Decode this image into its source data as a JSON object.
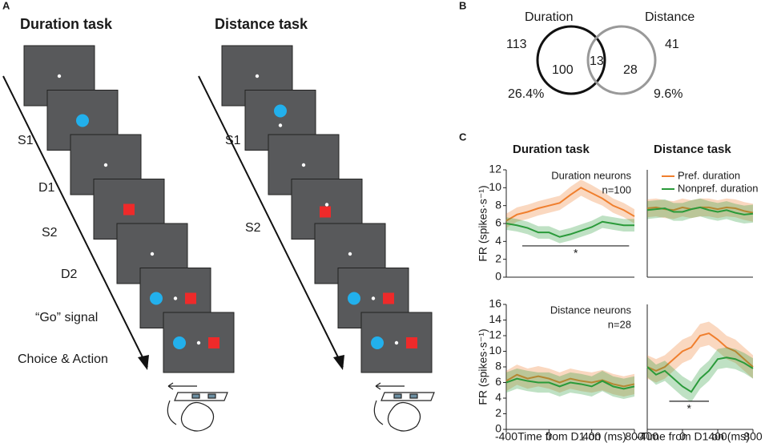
{
  "panel_a": {
    "label": "A",
    "duration_task": {
      "title": "Duration task",
      "steps": [
        "S1",
        "D1",
        "S2",
        "D2",
        "“Go” signal",
        "Choice & Action"
      ]
    },
    "distance_task": {
      "title": "Distance task",
      "steps": [
        "S1",
        "S2"
      ]
    }
  },
  "panel_b": {
    "label": "B",
    "sets": [
      {
        "name": "Duration",
        "total": 113,
        "only": 100,
        "percent": "26.4%"
      },
      {
        "name": "Distance",
        "total": 41,
        "only": 28,
        "percent": "9.6%"
      }
    ],
    "overlap": 13
  },
  "panel_c": {
    "label": "C"
  },
  "chart_data": [
    {
      "type": "line",
      "title": "Duration task",
      "ylabel": "FR (spikes·s⁻¹)",
      "annotations": [
        "Duration neurons",
        "n=100"
      ],
      "x": [
        -400,
        -300,
        -200,
        -100,
        0,
        100,
        200,
        300,
        400,
        500,
        600,
        700,
        800
      ],
      "xlim": [
        -400,
        800
      ],
      "ylim": [
        0,
        12
      ],
      "yticks": [
        0,
        2,
        4,
        6,
        8,
        10,
        12
      ],
      "sig_bar": {
        "x": [
          -250,
          750
        ],
        "y": 3.5,
        "label": "*"
      },
      "series": [
        {
          "color": "#f07f2e",
          "values": [
            6.3,
            7,
            7.3,
            7.7,
            8,
            8.3,
            9.2,
            10,
            9.4,
            8.8,
            8,
            7.5,
            6.8
          ],
          "errors": [
            0.8,
            0.8,
            0.8,
            0.8,
            0.8,
            0.8,
            0.9,
            0.9,
            0.9,
            0.8,
            0.8,
            0.8,
            0.8
          ]
        },
        {
          "color": "#2a9a3a",
          "values": [
            6,
            5.8,
            5.5,
            5,
            5,
            4.5,
            4.8,
            5.2,
            5.6,
            6.2,
            6,
            5.8,
            5.8
          ],
          "errors": [
            0.7,
            0.7,
            0.7,
            0.7,
            0.7,
            0.7,
            0.7,
            0.7,
            0.7,
            0.7,
            0.7,
            0.7,
            0.7
          ]
        }
      ]
    },
    {
      "type": "line",
      "title": "Distance task",
      "x": [
        -400,
        -300,
        -200,
        -100,
        0,
        100,
        200,
        300,
        400,
        500,
        600,
        700,
        800
      ],
      "xlim": [
        -400,
        800
      ],
      "ylim": [
        0,
        12
      ],
      "series": [
        {
          "name": "Pref.  duration",
          "color": "#f07f2e",
          "values": [
            7.7,
            7.8,
            7.6,
            7.5,
            7.8,
            7.6,
            7.8,
            7.8,
            7.6,
            7.8,
            7.7,
            7.4,
            7.2
          ],
          "errors": [
            1,
            1,
            1,
            1,
            1,
            1,
            1,
            1,
            1,
            1,
            1,
            1,
            1
          ]
        },
        {
          "name": "Nonpref. duration",
          "color": "#2a9a3a",
          "values": [
            7.5,
            7.6,
            7.7,
            7.3,
            7.3,
            7.6,
            7.8,
            7.5,
            7.3,
            7.5,
            7.2,
            7,
            7.1
          ],
          "errors": [
            1,
            1,
            1,
            1,
            1,
            1,
            1,
            1,
            1,
            1,
            1,
            1,
            1
          ]
        }
      ]
    },
    {
      "type": "line",
      "ylabel": "FR (spikes·s⁻¹)",
      "xlabel": "Time from D1 on (ms)",
      "annotations": [
        "Distance neurons",
        "n=28"
      ],
      "x": [
        -400,
        -300,
        -200,
        -100,
        0,
        100,
        200,
        300,
        400,
        500,
        600,
        700,
        800
      ],
      "xlim": [
        -400,
        800
      ],
      "xticks": [
        -400,
        0,
        400,
        800
      ],
      "ylim": [
        0,
        16
      ],
      "yticks": [
        0,
        2,
        4,
        6,
        8,
        10,
        12,
        14,
        16
      ],
      "series": [
        {
          "color": "#f07f2e",
          "values": [
            6.2,
            7,
            6.5,
            6.8,
            6.5,
            6,
            6.5,
            6.2,
            6,
            6.3,
            5.8,
            5.5,
            5.8
          ],
          "errors": [
            1.3,
            1.3,
            1.3,
            1.3,
            1.3,
            1.3,
            1.3,
            1.3,
            1.3,
            1.3,
            1.3,
            1.3,
            1.3
          ]
        },
        {
          "color": "#2a9a3a",
          "values": [
            6,
            6.5,
            6.2,
            6,
            6,
            5.5,
            6,
            5.8,
            5.5,
            6.2,
            5.5,
            5.2,
            5.5
          ],
          "errors": [
            1.3,
            1.3,
            1.3,
            1.3,
            1.3,
            1.3,
            1.3,
            1.3,
            1.3,
            1.3,
            1.3,
            1.3,
            1.3
          ]
        }
      ]
    },
    {
      "type": "line",
      "xlabel": "Time from D1 on (ms)",
      "x": [
        -400,
        -300,
        -200,
        -100,
        0,
        100,
        200,
        300,
        400,
        500,
        600,
        700,
        800
      ],
      "xlim": [
        -400,
        800
      ],
      "xticks": [
        -400,
        0,
        400,
        800
      ],
      "ylim": [
        0,
        16
      ],
      "sig_bar": {
        "x": [
          -150,
          300
        ],
        "y": 3.6,
        "label": "*"
      },
      "series": [
        {
          "color": "#f07f2e",
          "values": [
            8,
            7.5,
            8,
            9,
            10,
            10.5,
            12,
            12.3,
            11.5,
            10.5,
            10,
            9,
            8
          ],
          "errors": [
            1.5,
            1.5,
            1.5,
            1.5,
            1.5,
            1.5,
            1.5,
            1.5,
            1.5,
            1.5,
            1.5,
            1.5,
            1.5
          ]
        },
        {
          "color": "#2a9a3a",
          "values": [
            8,
            7,
            7.5,
            6.5,
            5.5,
            4.8,
            6.5,
            7.5,
            9,
            9.2,
            9,
            8.5,
            7.8
          ],
          "errors": [
            1.3,
            1.3,
            1.3,
            1.3,
            1.3,
            1.3,
            1.3,
            1.3,
            1.3,
            1.3,
            1.3,
            1.3,
            1.3
          ]
        }
      ]
    }
  ]
}
